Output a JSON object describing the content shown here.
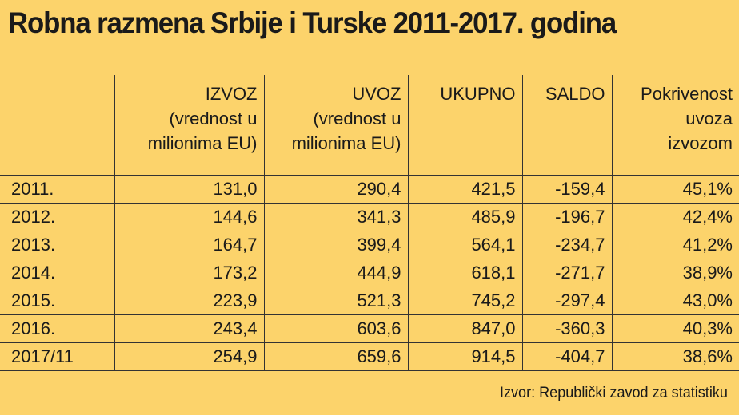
{
  "title": "Robna razmena Srbije i Turske 2011-2017. godina",
  "columns": [
    {
      "lines": [
        "IZVOZ",
        "(vrednost u",
        "milionima EU)"
      ]
    },
    {
      "lines": [
        "UVOZ",
        "(vrednost u",
        "milionima EU)"
      ]
    },
    {
      "lines": [
        "UKUPNO"
      ]
    },
    {
      "lines": [
        "SALDO"
      ]
    },
    {
      "lines": [
        "Pokrivenost",
        "uvoza",
        "izvozom"
      ]
    }
  ],
  "rows": [
    {
      "year": "2011.",
      "cells": [
        "131,0",
        "290,4",
        "421,5",
        "-159,4",
        "45,1%"
      ]
    },
    {
      "year": "2012.",
      "cells": [
        "144,6",
        "341,3",
        "485,9",
        "-196,7",
        "42,4%"
      ]
    },
    {
      "year": "2013.",
      "cells": [
        "164,7",
        "399,4",
        "564,1",
        "-234,7",
        "41,2%"
      ]
    },
    {
      "year": "2014.",
      "cells": [
        "173,2",
        "444,9",
        "618,1",
        "-271,7",
        "38,9%"
      ]
    },
    {
      "year": "2015.",
      "cells": [
        "223,9",
        "521,3",
        "745,2",
        "-297,4",
        "43,0%"
      ]
    },
    {
      "year": "2016.",
      "cells": [
        "243,4",
        "603,6",
        "847,0",
        "-360,3",
        "40,3%"
      ]
    },
    {
      "year": "2017/11",
      "cells": [
        "254,9",
        "659,6",
        "914,5",
        "-404,7",
        "38,6%"
      ]
    }
  ],
  "source": "Izvor: Republički zavod za statistiku",
  "colors": {
    "background": "#fcd36b",
    "text": "#1a1a1a",
    "rule": "#333333"
  }
}
